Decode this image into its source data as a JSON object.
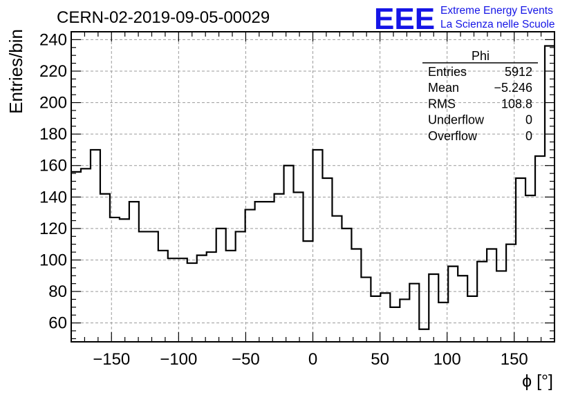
{
  "title": "CERN-02-2019-09-05-00029",
  "logo": {
    "letters": "EEE",
    "line1": "Extreme Energy Events",
    "line2": "La Scienza nelle Scuole",
    "color": "#1515e6"
  },
  "stats": {
    "name": "Phi",
    "rows": [
      {
        "label": "Entries",
        "value": "5912"
      },
      {
        "label": "Mean",
        "value": "−5.246"
      },
      {
        "label": "RMS",
        "value": "108.8"
      },
      {
        "label": "Underflow",
        "value": "0"
      },
      {
        "label": "Overflow",
        "value": "0"
      }
    ]
  },
  "chart_data": {
    "type": "histogram",
    "xlabel": "ϕ [°]",
    "ylabel": "Entries/bin",
    "xlim": [
      -180,
      180
    ],
    "ylim": [
      48,
      245
    ],
    "bin_width": 7.2,
    "xticks": [
      -150,
      -100,
      -50,
      0,
      50,
      100,
      150
    ],
    "xtick_labels": [
      "−150",
      "−100",
      "−50",
      "0",
      "50",
      "100",
      "150"
    ],
    "yticks": [
      60,
      80,
      100,
      120,
      140,
      160,
      180,
      200,
      220,
      240
    ],
    "grid": true,
    "bin_edges_start": -180,
    "values": [
      156,
      158,
      170,
      142,
      127,
      126,
      137,
      118,
      118,
      106,
      101,
      101,
      98,
      103,
      105,
      120,
      106,
      118,
      132,
      137,
      137,
      142,
      160,
      143,
      112,
      170,
      152,
      128,
      120,
      107,
      89,
      77,
      79,
      70,
      75,
      85,
      56,
      91,
      73,
      96,
      90,
      77,
      99,
      107,
      93,
      110,
      152,
      141,
      166,
      236
    ]
  }
}
